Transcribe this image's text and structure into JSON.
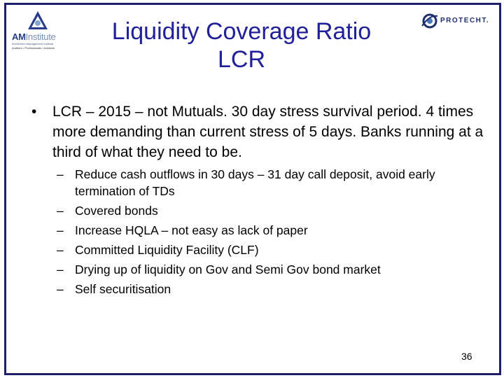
{
  "logos": {
    "left_name": "AM",
    "left_name_suffix": "Institute",
    "left_subtitle": "Investment Management Institute",
    "left_tagline": "Auditors • Professionals • Advisors",
    "right_name": "PROTECHT."
  },
  "slide": {
    "title_line1": "Liquidity Coverage Ratio",
    "title_line2": "LCR",
    "bullet_symbol": "•",
    "dash_symbol": "–",
    "main_bullet": "LCR – 2015 – not Mutuals. 30 day stress survival period. 4 times more demanding than current stress of 5 days. Banks running at a third of what they need to be.",
    "sub_bullets": [
      "Reduce cash outflows in 30 days – 31 day call deposit, avoid early termination of TDs",
      "Covered bonds",
      "Increase HQLA – not easy as lack of paper",
      "Committed Liquidity Facility (CLF)",
      "Drying up of liquidity on Gov and Semi Gov bond market",
      "Self securitisation"
    ],
    "page_number": "36"
  },
  "colors": {
    "title": "#20209a",
    "frame": "#1f1f6b",
    "logo_blue": "#2a3c8c"
  }
}
